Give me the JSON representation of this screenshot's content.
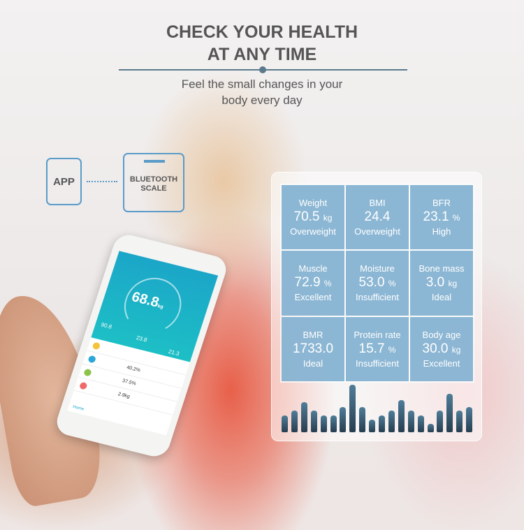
{
  "header": {
    "title_line1": "CHECK YOUR HEALTH",
    "title_line2": "AT ANY TIME",
    "subtitle_line1": "Feel the small changes in your",
    "subtitle_line2": "body every day"
  },
  "diagram": {
    "app_label": "APP",
    "scale_label_line1": "BLUETOOTH",
    "scale_label_line2": "SCALE",
    "accent_color": "#5a9bc8"
  },
  "metrics": [
    {
      "label": "Weight",
      "value": "70.5",
      "unit": "kg",
      "status": "Overweight"
    },
    {
      "label": "BMI",
      "value": "24.4",
      "unit": "",
      "status": "Overweight"
    },
    {
      "label": "BFR",
      "value": "23.1",
      "unit": "%",
      "status": "High"
    },
    {
      "label": "Muscle",
      "value": "72.9",
      "unit": "%",
      "status": "Excellent"
    },
    {
      "label": "Moisture",
      "value": "53.0",
      "unit": "%",
      "status": "Insufficient"
    },
    {
      "label": "Bone mass",
      "value": "3.0",
      "unit": "kg",
      "status": "Ideal"
    },
    {
      "label": "BMR",
      "value": "1733.0",
      "unit": "",
      "status": "Ideal"
    },
    {
      "label": "Protein rate",
      "value": "15.7",
      "unit": "%",
      "status": "Insufficient"
    },
    {
      "label": "Body age",
      "value": "30.0",
      "unit": "kg",
      "status": "Excellent"
    }
  ],
  "bar_levels": [
    0.36,
    0.45,
    0.63,
    0.45,
    0.36,
    0.36,
    0.53,
    1.0,
    0.53,
    0.26,
    0.36,
    0.45,
    0.68,
    0.45,
    0.36,
    0.17,
    0.45,
    0.81,
    0.45,
    0.53
  ],
  "phone": {
    "weight": "68.8",
    "weight_unit": "kg",
    "stat1": "90.8",
    "stat2": "23.8",
    "stat3": "21.3",
    "rows": [
      {
        "value": ""
      },
      {
        "value": "40.2%"
      },
      {
        "value": "37.5%"
      },
      {
        "value": "2.9kg"
      }
    ],
    "tab_home": "Home",
    "screen_color": "#1ba6c8"
  }
}
